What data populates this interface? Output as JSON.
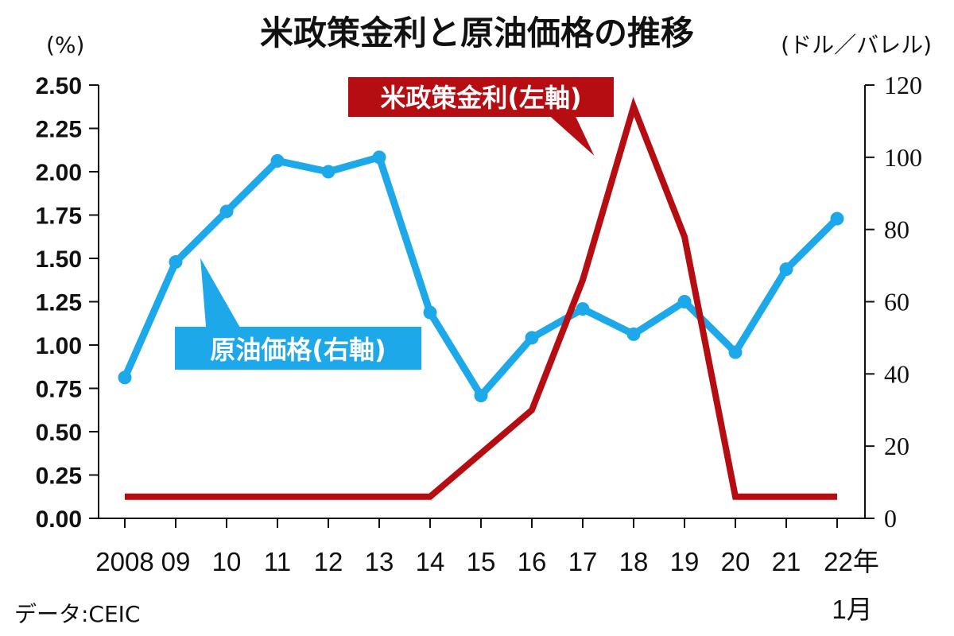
{
  "chart_data": {
    "type": "line",
    "title": "米政策金利と原油価格の推移",
    "left_axis": {
      "unit": "(%)",
      "ylim": [
        0,
        2.5
      ],
      "ticks": [
        "0.00",
        "0.25",
        "0.50",
        "0.75",
        "1.00",
        "1.25",
        "1.50",
        "1.75",
        "2.00",
        "2.25",
        "2.50"
      ]
    },
    "right_axis": {
      "unit": "(ドル／バレル)",
      "ylim": [
        0,
        120
      ],
      "ticks": [
        "0",
        "20",
        "40",
        "60",
        "80",
        "100",
        "120"
      ]
    },
    "categories": [
      "2008",
      "09",
      "10",
      "11",
      "12",
      "13",
      "14",
      "15",
      "16",
      "17",
      "18",
      "19",
      "20",
      "21",
      "22年"
    ],
    "x_note": "1月",
    "series": [
      {
        "name": "米政策金利(左軸)",
        "axis": "left",
        "color": "#b50d12",
        "values": [
          0.125,
          0.125,
          0.125,
          0.125,
          0.125,
          0.125,
          0.125,
          0.375,
          0.625,
          1.375,
          2.375,
          1.625,
          0.125,
          0.125,
          0.125
        ]
      },
      {
        "name": "原油価格(右軸)",
        "axis": "right",
        "color": "#1da8ea",
        "values": [
          39,
          71,
          85,
          99,
          96,
          100,
          57,
          34,
          50,
          58,
          51,
          60,
          46,
          69,
          83
        ]
      }
    ],
    "source": "データ:CEIC",
    "grid": false
  }
}
